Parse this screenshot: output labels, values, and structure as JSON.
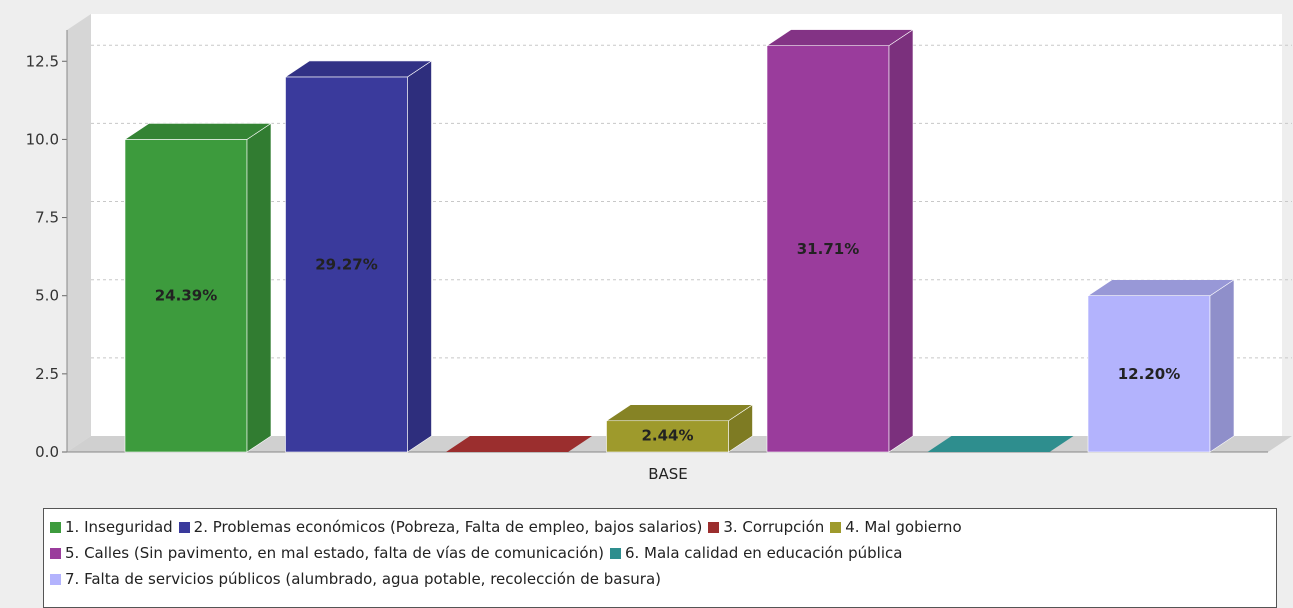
{
  "chart_data": {
    "type": "bar",
    "categories": [
      "BASE"
    ],
    "ylim": [
      0,
      13.5
    ],
    "yticks": [
      "0.0",
      "2.5",
      "5.0",
      "7.5",
      "10.0",
      "12.5"
    ],
    "grid": true,
    "legend_position": "bottom",
    "series": [
      {
        "name": "1. Inseguridad",
        "values": [
          10
        ],
        "label": "24.39%",
        "color": "#3d9b3d"
      },
      {
        "name": "2. Problemas económicos (Pobreza, Falta de empleo, bajos salarios)",
        "values": [
          12
        ],
        "label": "29.27%",
        "color": "#3a3a9c"
      },
      {
        "name": "3. Corrupción",
        "values": [
          0
        ],
        "label": "",
        "color": "#9b2e2e"
      },
      {
        "name": "4. Mal gobierno",
        "values": [
          1
        ],
        "label": "2.44%",
        "color": "#9e9a2c"
      },
      {
        "name": "5. Calles (Sin pavimento, en mal estado, falta de vías de comunicación)",
        "values": [
          13
        ],
        "label": "31.71%",
        "color": "#9a3c9c"
      },
      {
        "name": "6. Mala calidad en educación pública",
        "values": [
          0
        ],
        "label": "",
        "color": "#2e8e8e"
      },
      {
        "name": "7. Falta de servicios públicos (alumbrado, agua potable, recolección de basura)",
        "values": [
          5
        ],
        "label": "12.20%",
        "color": "#b3b3fd"
      }
    ],
    "legend_rows": [
      [
        0,
        1,
        2,
        3
      ],
      [
        4,
        5
      ],
      [
        6
      ]
    ]
  }
}
